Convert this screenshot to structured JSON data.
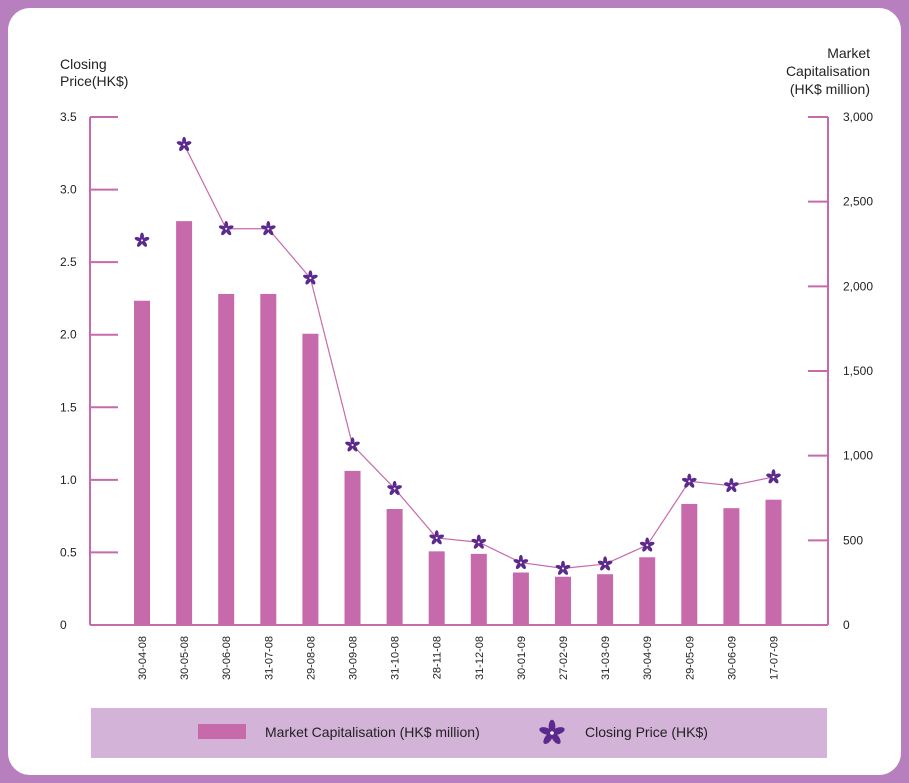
{
  "chart_data": {
    "type": "bar",
    "left_axis": {
      "label_lines": [
        "Closing",
        "Price(HK$)"
      ],
      "ticks": [
        0,
        0.5,
        1.0,
        1.5,
        2.0,
        2.5,
        3.0,
        3.5
      ],
      "tick_labels": [
        "0",
        "0.5",
        "1.0",
        "1.5",
        "2.0",
        "2.5",
        "3.0",
        "3.5"
      ],
      "ylim": [
        0,
        3.5
      ]
    },
    "right_axis": {
      "label_lines": [
        "Market",
        "Capitalisation",
        "(HK$ million)"
      ],
      "ticks": [
        0,
        500,
        1000,
        1500,
        2000,
        2500,
        3000
      ],
      "tick_labels": [
        "0",
        "500",
        "1,000",
        "1,500",
        "2,000",
        "2,500",
        "3,000"
      ],
      "ylim": [
        0,
        3000
      ]
    },
    "categories": [
      "30-04-08",
      "30-05-08",
      "30-06-08",
      "31-07-08",
      "29-08-08",
      "30-09-08",
      "31-10-08",
      "28-11-08",
      "31-12-08",
      "30-01-09",
      "27-02-09",
      "31-03-09",
      "30-04-09",
      "29-05-09",
      "30-06-09",
      "17-07-09"
    ],
    "series": [
      {
        "name": "Market Capitalisation (HK$ million)",
        "type": "bar",
        "axis": "right",
        "color": "#c76aab",
        "values": [
          1915,
          2385,
          1955,
          1955,
          1720,
          910,
          685,
          435,
          420,
          310,
          285,
          300,
          400,
          715,
          690,
          740
        ]
      },
      {
        "name": "Closing Price (HK$)",
        "type": "line",
        "axis": "left",
        "color": "#c76aab",
        "marker_color": "#5c2a8c",
        "values": [
          2.65,
          3.31,
          2.73,
          2.73,
          2.39,
          1.24,
          0.94,
          0.6,
          0.57,
          0.43,
          0.39,
          0.42,
          0.55,
          0.99,
          0.96,
          1.02
        ]
      }
    ]
  },
  "legend": {
    "bar_label": "Market Capitalisation (HK$ million)",
    "line_label": "Closing Price (HK$)",
    "background": "#d3b3d8"
  },
  "colors": {
    "frame_border": "#b77fbe",
    "axis": "#c76aab"
  }
}
